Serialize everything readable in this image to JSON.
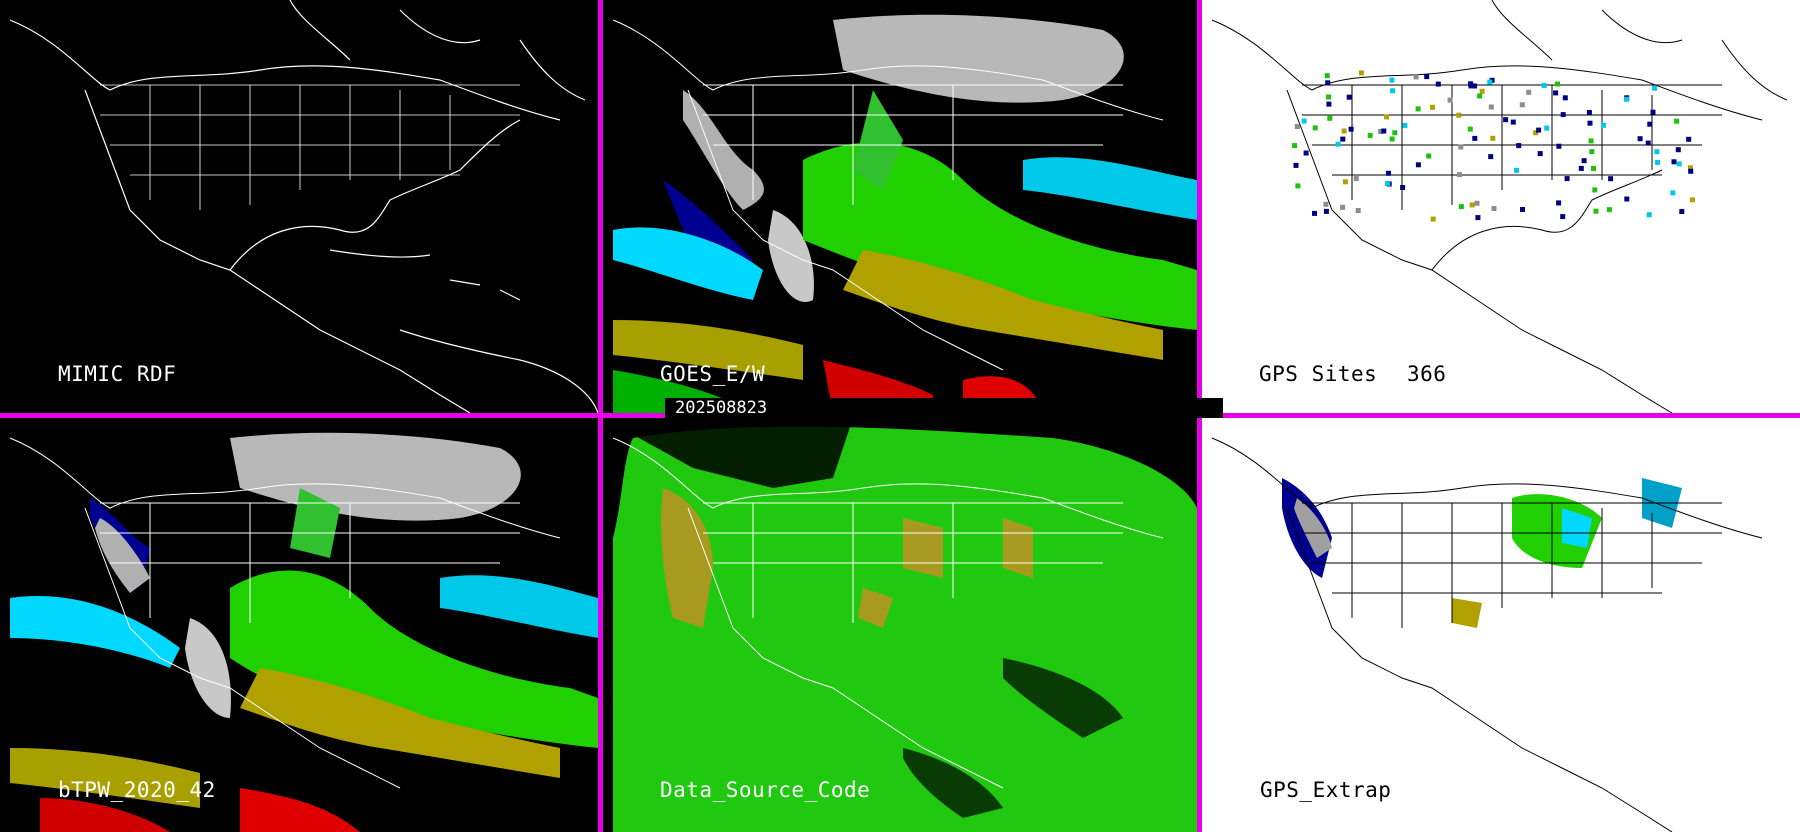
{
  "timestamp": "202508823",
  "panels": [
    {
      "id": "mimic-rdf",
      "label": "MIMIC RDF",
      "theme": "dark"
    },
    {
      "id": "goes-ew",
      "label": "GOES_E/W",
      "theme": "dark"
    },
    {
      "id": "gps-sites",
      "label": "GPS Sites",
      "count": "366",
      "theme": "light"
    },
    {
      "id": "btpw",
      "label": "bTPW_2020_42",
      "theme": "dark"
    },
    {
      "id": "data-source-code",
      "label": "Data_Source_Code",
      "theme": "dark"
    },
    {
      "id": "gps-extrap",
      "label": "GPS_Extrap",
      "theme": "light"
    }
  ],
  "colors": {
    "divider": "#e600e6",
    "palette": [
      "#ffffff",
      "#8c8c8c",
      "#000080",
      "#0000d0",
      "#00e0ff",
      "#00c000",
      "#30e000",
      "#b0a000",
      "#e0e000",
      "#d00000"
    ]
  }
}
